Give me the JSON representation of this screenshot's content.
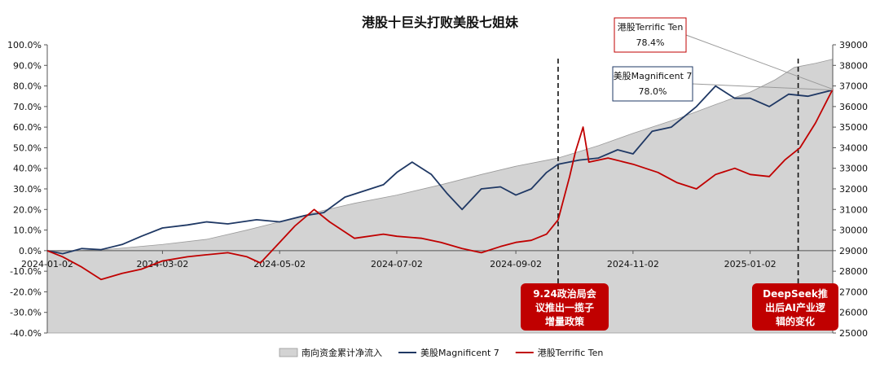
{
  "chart_data": {
    "type": "line",
    "title": "港股十巨头打败美股七姐妹",
    "xlabel": "",
    "ylabel": "",
    "x_tick_labels": [
      "2024-01-02",
      "2024-03-02",
      "2024-05-02",
      "2024-07-02",
      "2024-09-02",
      "2024-11-02",
      "2025-01-02"
    ],
    "x_range": [
      "2024-01-02",
      "2025-02-14"
    ],
    "y_left": {
      "range": [
        -40,
        100
      ],
      "ticks": [
        "100.0%",
        "90.0%",
        "80.0%",
        "70.0%",
        "60.0%",
        "50.0%",
        "40.0%",
        "30.0%",
        "20.0%",
        "10.0%",
        "0.0%",
        "-10.0%",
        "-20.0%",
        "-30.0%",
        "-40.0%"
      ]
    },
    "y_right": {
      "range": [
        25000,
        39000
      ],
      "ticks": [
        "39000",
        "38000",
        "37000",
        "36000",
        "35000",
        "34000",
        "33000",
        "32000",
        "31000",
        "30000",
        "29000",
        "28000",
        "27000",
        "26000",
        "25000"
      ]
    },
    "grid": false,
    "legend_position": "bottom",
    "series": [
      {
        "name": "南向资金累计净流入",
        "type": "area",
        "axis": "right",
        "color": "#d3d3d3",
        "points": [
          [
            "2024-01-02",
            28950
          ],
          [
            "2024-02-01",
            29050
          ],
          [
            "2024-03-02",
            29300
          ],
          [
            "2024-03-25",
            29550
          ],
          [
            "2024-04-15",
            30000
          ],
          [
            "2024-05-02",
            30400
          ],
          [
            "2024-05-20",
            30850
          ],
          [
            "2024-06-10",
            31300
          ],
          [
            "2024-07-02",
            31700
          ],
          [
            "2024-07-25",
            32200
          ],
          [
            "2024-08-15",
            32700
          ],
          [
            "2024-09-02",
            33100
          ],
          [
            "2024-09-24",
            33500
          ],
          [
            "2024-10-15",
            34100
          ],
          [
            "2024-11-02",
            34700
          ],
          [
            "2024-11-25",
            35400
          ],
          [
            "2024-12-15",
            36100
          ],
          [
            "2025-01-02",
            36700
          ],
          [
            "2025-01-15",
            37300
          ],
          [
            "2025-01-25",
            37900
          ],
          [
            "2025-02-05",
            38100
          ],
          [
            "2025-02-14",
            38300
          ]
        ]
      },
      {
        "name": "美股Magnificent 7",
        "type": "line",
        "axis": "left",
        "color": "#1f3864",
        "unit": "%",
        "points": [
          [
            "2024-01-02",
            0.0
          ],
          [
            "2024-01-10",
            -1.5
          ],
          [
            "2024-01-20",
            1.0
          ],
          [
            "2024-01-30",
            0.5
          ],
          [
            "2024-02-10",
            3.0
          ],
          [
            "2024-02-20",
            7.0
          ],
          [
            "2024-03-02",
            11.0
          ],
          [
            "2024-03-15",
            12.5
          ],
          [
            "2024-03-25",
            14.0
          ],
          [
            "2024-04-05",
            13.0
          ],
          [
            "2024-04-20",
            15.0
          ],
          [
            "2024-05-02",
            14.0
          ],
          [
            "2024-05-15",
            17.0
          ],
          [
            "2024-05-25",
            18.5
          ],
          [
            "2024-06-05",
            26.0
          ],
          [
            "2024-06-15",
            29.0
          ],
          [
            "2024-06-25",
            32.0
          ],
          [
            "2024-07-02",
            38.0
          ],
          [
            "2024-07-10",
            43.0
          ],
          [
            "2024-07-20",
            37.0
          ],
          [
            "2024-07-28",
            28.0
          ],
          [
            "2024-08-05",
            20.0
          ],
          [
            "2024-08-15",
            30.0
          ],
          [
            "2024-08-25",
            31.0
          ],
          [
            "2024-09-02",
            27.0
          ],
          [
            "2024-09-10",
            30.0
          ],
          [
            "2024-09-18",
            38.0
          ],
          [
            "2024-09-24",
            42.0
          ],
          [
            "2024-10-05",
            44.0
          ],
          [
            "2024-10-15",
            45.0
          ],
          [
            "2024-10-25",
            49.0
          ],
          [
            "2024-11-02",
            47.0
          ],
          [
            "2024-11-12",
            58.0
          ],
          [
            "2024-11-22",
            60.0
          ],
          [
            "2024-12-05",
            70.0
          ],
          [
            "2024-12-15",
            80.0
          ],
          [
            "2024-12-25",
            74.0
          ],
          [
            "2025-01-02",
            74.0
          ],
          [
            "2025-01-12",
            70.0
          ],
          [
            "2025-01-22",
            76.0
          ],
          [
            "2025-02-01",
            75.0
          ],
          [
            "2025-02-14",
            78.0
          ]
        ]
      },
      {
        "name": "港股Terrific Ten",
        "type": "line",
        "axis": "left",
        "color": "#c00000",
        "unit": "%",
        "points": [
          [
            "2024-01-02",
            0.0
          ],
          [
            "2024-01-10",
            -3.0
          ],
          [
            "2024-01-20",
            -8.0
          ],
          [
            "2024-01-30",
            -14.0
          ],
          [
            "2024-02-10",
            -11.0
          ],
          [
            "2024-02-20",
            -9.0
          ],
          [
            "2024-03-02",
            -5.0
          ],
          [
            "2024-03-15",
            -3.0
          ],
          [
            "2024-03-25",
            -2.0
          ],
          [
            "2024-04-05",
            -1.0
          ],
          [
            "2024-04-15",
            -3.0
          ],
          [
            "2024-04-22",
            -6.0
          ],
          [
            "2024-05-02",
            4.0
          ],
          [
            "2024-05-10",
            12.0
          ],
          [
            "2024-05-20",
            20.0
          ],
          [
            "2024-05-28",
            14.0
          ],
          [
            "2024-06-10",
            6.0
          ],
          [
            "2024-06-25",
            8.0
          ],
          [
            "2024-07-02",
            7.0
          ],
          [
            "2024-07-15",
            6.0
          ],
          [
            "2024-07-25",
            4.0
          ],
          [
            "2024-08-05",
            1.0
          ],
          [
            "2024-08-15",
            -1.0
          ],
          [
            "2024-08-25",
            2.0
          ],
          [
            "2024-09-02",
            4.0
          ],
          [
            "2024-09-10",
            5.0
          ],
          [
            "2024-09-18",
            8.0
          ],
          [
            "2024-09-24",
            15.0
          ],
          [
            "2024-09-30",
            36.0
          ],
          [
            "2024-10-03",
            48.0
          ],
          [
            "2024-10-07",
            60.0
          ],
          [
            "2024-10-10",
            43.0
          ],
          [
            "2024-10-20",
            45.0
          ],
          [
            "2024-11-02",
            42.0
          ],
          [
            "2024-11-15",
            38.0
          ],
          [
            "2024-11-25",
            33.0
          ],
          [
            "2024-12-05",
            30.0
          ],
          [
            "2024-12-15",
            37.0
          ],
          [
            "2024-12-25",
            40.0
          ],
          [
            "2025-01-02",
            37.0
          ],
          [
            "2025-01-12",
            36.0
          ],
          [
            "2025-01-20",
            44.0
          ],
          [
            "2025-01-28",
            50.0
          ],
          [
            "2025-02-05",
            62.0
          ],
          [
            "2025-02-14",
            78.4
          ]
        ]
      }
    ],
    "vertical_markers": [
      {
        "date": "2024-09-24",
        "label": "9.24政治局会议推出一揽子增量政策"
      },
      {
        "date": "2025-01-27",
        "label": "DeepSeek推出后AI产业逻辑的变化"
      }
    ],
    "callouts": [
      {
        "series": "港股Terrific Ten",
        "label": "港股Terrific Ten",
        "value": "78.4%"
      },
      {
        "series": "美股Magnificent 7",
        "label": "美股Magnificent 7",
        "value": "78.0%"
      }
    ],
    "event_boxes": [
      {
        "lines": [
          "9.24政治局会",
          "议推出一揽子",
          "增量政策"
        ],
        "color": "#c00000"
      },
      {
        "lines": [
          "DeepSeek推",
          "出后AI产业逻",
          "辑的变化"
        ],
        "color": "#c00000"
      }
    ]
  }
}
